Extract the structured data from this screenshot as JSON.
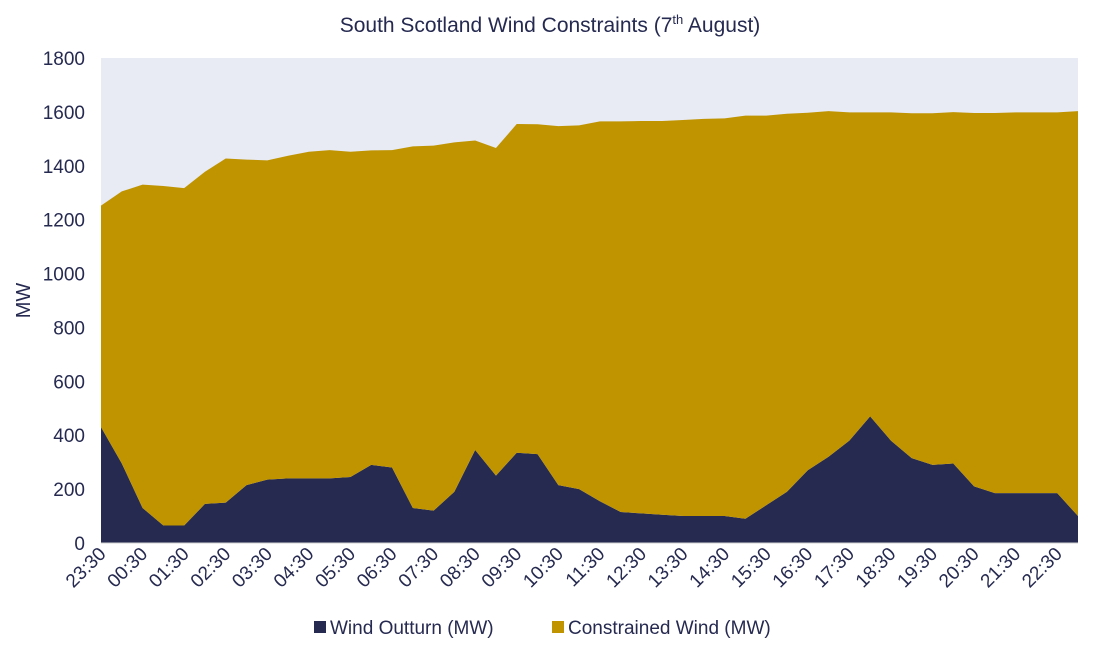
{
  "colors": {
    "plot_background": "#E8EAF4",
    "wind_outturn": "#262A50",
    "constrained_wind": "#BF9400",
    "text": "#262A50"
  },
  "chart_data": {
    "type": "area",
    "stacked": true,
    "title_main": "South Scotland Wind Constraints (7",
    "title_sup": "th",
    "title_end": " August)",
    "ylabel": "MW",
    "xlabel": "",
    "ylim": [
      0,
      1800
    ],
    "yticks": [
      "0",
      "200",
      "400",
      "600",
      "800",
      "1000",
      "1200",
      "1400",
      "1600",
      "1800"
    ],
    "grid": false,
    "legend_position": "bottom-center",
    "x_tick_labels": [
      "23:30",
      "00:30",
      "01:30",
      "02:30",
      "03:30",
      "04:30",
      "05:30",
      "06:30",
      "07:30",
      "08:30",
      "09:30",
      "10:30",
      "11:30",
      "12:30",
      "13:30",
      "14:30",
      "15:30",
      "16:30",
      "17:30",
      "18:30",
      "19:30",
      "20:30",
      "21:30",
      "22:30"
    ],
    "x": [
      "23:30",
      "00:00",
      "00:30",
      "01:00",
      "01:30",
      "02:00",
      "02:30",
      "03:00",
      "03:30",
      "04:00",
      "04:30",
      "05:00",
      "05:30",
      "06:00",
      "06:30",
      "07:00",
      "07:30",
      "08:00",
      "08:30",
      "09:00",
      "09:30",
      "10:00",
      "10:30",
      "11:00",
      "11:30",
      "12:00",
      "12:30",
      "13:00",
      "13:30",
      "14:00",
      "14:30",
      "15:00",
      "15:30",
      "16:00",
      "16:30",
      "17:00",
      "17:30",
      "18:00",
      "18:30",
      "19:00",
      "19:30",
      "20:00",
      "20:30",
      "21:00",
      "21:30",
      "22:00",
      "22:30",
      "23:00"
    ],
    "series": [
      {
        "name": "Wind Outturn (MW)",
        "color": "#262A50",
        "values": [
          430,
          295,
          130,
          65,
          65,
          145,
          150,
          215,
          235,
          240,
          240,
          240,
          245,
          290,
          280,
          130,
          120,
          190,
          345,
          250,
          335,
          330,
          215,
          200,
          155,
          115,
          110,
          105,
          100,
          100,
          100,
          90,
          140,
          190,
          270,
          320,
          380,
          470,
          380,
          315,
          290,
          295,
          210,
          185,
          185,
          185,
          185,
          100
        ]
      },
      {
        "name": "Constrained Wind (MW)",
        "color": "#BF9400",
        "values": [
          822,
          1010,
          1200,
          1260,
          1252,
          1233,
          1277,
          1208,
          1185,
          1197,
          1212,
          1218,
          1207,
          1167,
          1178,
          1342,
          1355,
          1297,
          1149,
          1216,
          1220,
          1224,
          1332,
          1350,
          1410,
          1450,
          1456,
          1461,
          1470,
          1474,
          1476,
          1496,
          1446,
          1403,
          1327,
          1283,
          1218,
          1128,
          1218,
          1280,
          1305,
          1304,
          1386,
          1411,
          1413,
          1413,
          1413,
          1503
        ]
      }
    ]
  }
}
